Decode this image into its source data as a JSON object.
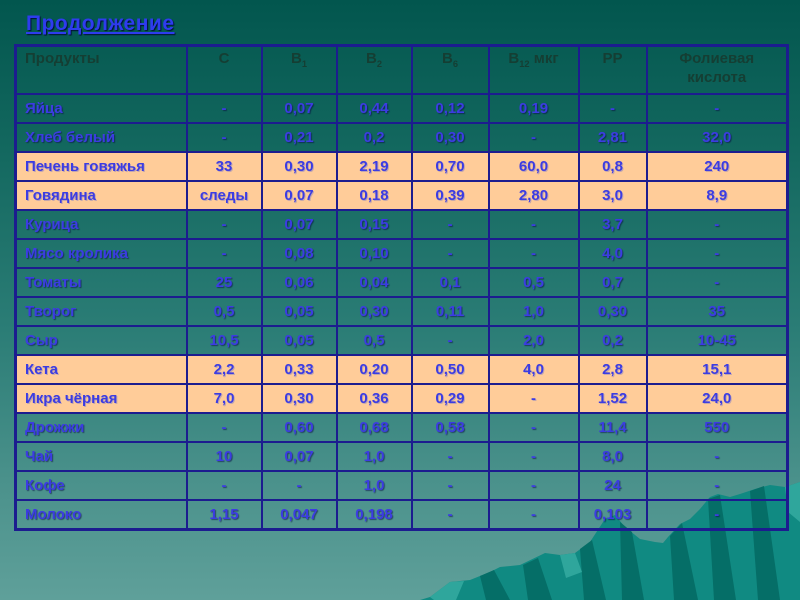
{
  "slide": {
    "title": "Продолжение",
    "colors": {
      "background_top": "#02564E",
      "background_bottom": "#5FA09A",
      "title_blue": "#2E3CEE",
      "table_border_navy": "#1C1C8F",
      "header_text_dark_green": "#153E33",
      "cell_text_blue": "#3C3CE2",
      "highlight_row_peach": "#FFCC99",
      "mountain_main_teal": "#108A82",
      "mountain_dark_teal": "#056E67",
      "mountain_light_teal": "#2FA69C"
    }
  },
  "table": {
    "columns": [
      {
        "label": "Продукты",
        "sub": "",
        "suffix": ""
      },
      {
        "label": "C",
        "sub": "",
        "suffix": ""
      },
      {
        "label": "B",
        "sub": "1",
        "suffix": ""
      },
      {
        "label": "B",
        "sub": "2",
        "suffix": ""
      },
      {
        "label": "B",
        "sub": "6",
        "suffix": ""
      },
      {
        "label": "B",
        "sub": "12",
        "suffix": " мкг"
      },
      {
        "label": "PP",
        "sub": "",
        "suffix": ""
      },
      {
        "label": "Фолиевая кислота",
        "sub": "",
        "suffix": ""
      }
    ],
    "rows": [
      {
        "product": "Яйца",
        "values": [
          "-",
          "0,07",
          "0,44",
          "0,12",
          "0,19",
          "-",
          "-"
        ],
        "highlight": false
      },
      {
        "product": "Хлеб белый",
        "values": [
          "-",
          "0,21",
          "0,2",
          "0,30",
          "-",
          "2,81",
          "32,0"
        ],
        "highlight": false
      },
      {
        "product": "Печень говяжья",
        "values": [
          "33",
          "0,30",
          "2,19",
          "0,70",
          "60,0",
          "0,8",
          "240"
        ],
        "highlight": true
      },
      {
        "product": "Говядина",
        "values": [
          "следы",
          "0,07",
          "0,18",
          "0,39",
          "2,80",
          "3,0",
          "8,9"
        ],
        "highlight": true
      },
      {
        "product": "Курица",
        "values": [
          "-",
          "0,07",
          "0,15",
          "-",
          "-",
          "3,7",
          "-"
        ],
        "highlight": false
      },
      {
        "product": "Мясо кролика",
        "values": [
          "-",
          "0,08",
          "0,10",
          "-",
          "-",
          "4,0",
          "-"
        ],
        "highlight": false
      },
      {
        "product": "Томаты",
        "values": [
          "25",
          "0,06",
          "0,04",
          "0,1",
          "0,5",
          "0,7",
          "-"
        ],
        "highlight": false
      },
      {
        "product": "Творог",
        "values": [
          "0,5",
          "0,05",
          "0,30",
          "0,11",
          "1,0",
          "0,30",
          "35"
        ],
        "highlight": false
      },
      {
        "product": "Сыр",
        "values": [
          "10,5",
          "0,05",
          "0,5",
          "-",
          "2,0",
          "0,2",
          "10-45"
        ],
        "highlight": false
      },
      {
        "product": "Кета",
        "values": [
          "2,2",
          "0,33",
          "0,20",
          "0,50",
          "4,0",
          "2,8",
          "15,1"
        ],
        "highlight": true
      },
      {
        "product": "Икра чёрная",
        "values": [
          "7,0",
          "0,30",
          "0,36",
          "0,29",
          "-",
          "1,52",
          "24,0"
        ],
        "highlight": true
      },
      {
        "product": "Дрожжи",
        "values": [
          "-",
          "0,60",
          "0,68",
          "0,58",
          "-",
          "11,4",
          "550"
        ],
        "highlight": false
      },
      {
        "product": "Чай",
        "values": [
          "10",
          "0,07",
          "1,0",
          "-",
          "-",
          "8,0",
          "-"
        ],
        "highlight": false
      },
      {
        "product": "Кофе",
        "values": [
          "-",
          "-",
          "1,0",
          "-",
          "-",
          "24",
          "-"
        ],
        "highlight": false
      },
      {
        "product": "Молоко",
        "values": [
          "1,15",
          "0,047",
          "0,198",
          "-",
          "-",
          "0,103",
          "-"
        ],
        "highlight": false
      }
    ]
  }
}
